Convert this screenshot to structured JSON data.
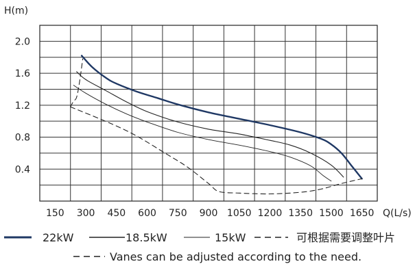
{
  "chart_data": {
    "type": "line",
    "ylabel": "H(m)",
    "xlabel": "Q(L/s)",
    "xlim": [
      75,
      1725
    ],
    "ylim": [
      0,
      2.2
    ],
    "xticks": [
      "150",
      "300",
      "450",
      "600",
      "750",
      "900",
      "1050",
      "1200",
      "1350",
      "1500",
      "1650"
    ],
    "yticks": [
      "0.4",
      "0.8",
      "1.2",
      "1.6",
      "2.0"
    ],
    "grid": true,
    "series": [
      {
        "name": "22kW",
        "style": "thick",
        "color": "#1f3864",
        "points": [
          [
            280,
            1.82
          ],
          [
            330,
            1.68
          ],
          [
            400,
            1.54
          ],
          [
            450,
            1.47
          ],
          [
            550,
            1.37
          ],
          [
            650,
            1.29
          ],
          [
            750,
            1.21
          ],
          [
            900,
            1.11
          ],
          [
            1050,
            1.03
          ],
          [
            1200,
            0.95
          ],
          [
            1350,
            0.86
          ],
          [
            1450,
            0.78
          ],
          [
            1500,
            0.71
          ],
          [
            1550,
            0.6
          ],
          [
            1600,
            0.44
          ],
          [
            1650,
            0.28
          ]
        ]
      },
      {
        "name": "18.5kW",
        "style": "medium",
        "color": "#222222",
        "points": [
          [
            255,
            1.62
          ],
          [
            300,
            1.52
          ],
          [
            400,
            1.38
          ],
          [
            500,
            1.24
          ],
          [
            600,
            1.12
          ],
          [
            750,
            0.99
          ],
          [
            900,
            0.9
          ],
          [
            1050,
            0.84
          ],
          [
            1200,
            0.76
          ],
          [
            1300,
            0.7
          ],
          [
            1400,
            0.6
          ],
          [
            1500,
            0.45
          ],
          [
            1560,
            0.3
          ]
        ]
      },
      {
        "name": "15kW",
        "style": "thin",
        "color": "#222222",
        "points": [
          [
            240,
            1.45
          ],
          [
            300,
            1.35
          ],
          [
            400,
            1.21
          ],
          [
            500,
            1.09
          ],
          [
            600,
            0.99
          ],
          [
            750,
            0.86
          ],
          [
            900,
            0.77
          ],
          [
            1050,
            0.7
          ],
          [
            1200,
            0.62
          ],
          [
            1300,
            0.55
          ],
          [
            1400,
            0.44
          ],
          [
            1460,
            0.32
          ],
          [
            1500,
            0.25
          ]
        ]
      },
      {
        "name": "可根据需要调整叶片",
        "style": "dashed",
        "color": "#222222",
        "points": [
          [
            225,
            1.18
          ],
          [
            240,
            1.25
          ],
          [
            255,
            1.3
          ],
          [
            270,
            1.5
          ],
          [
            285,
            1.78
          ]
        ],
        "points_lower": [
          [
            225,
            1.18
          ],
          [
            500,
            0.88
          ],
          [
            700,
            0.58
          ],
          [
            800,
            0.42
          ],
          [
            900,
            0.22
          ],
          [
            950,
            0.12
          ],
          [
            1050,
            0.1
          ],
          [
            1200,
            0.09
          ],
          [
            1350,
            0.11
          ],
          [
            1450,
            0.15
          ],
          [
            1550,
            0.22
          ],
          [
            1650,
            0.28
          ]
        ]
      }
    ],
    "legend_note": "Vanes can be adjusted according to the need."
  }
}
